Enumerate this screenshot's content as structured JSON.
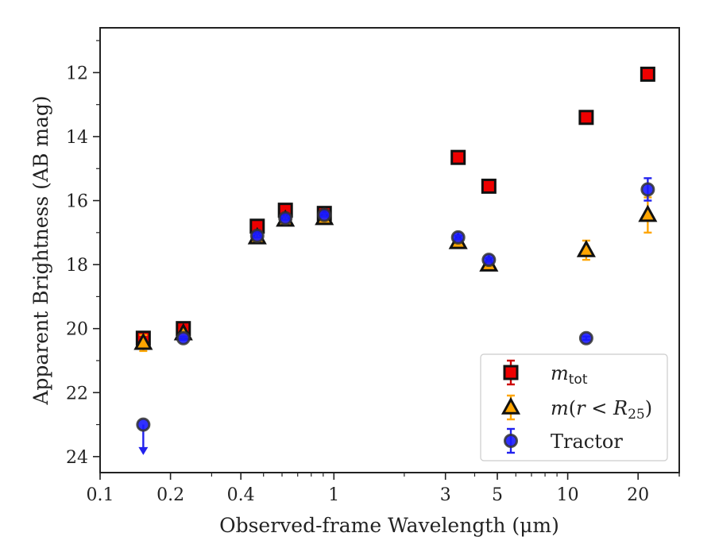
{
  "chart_data": {
    "type": "scatter",
    "xlabel": "Observed-frame Wavelength (μm)",
    "ylabel": "Apparent Brightness (AB mag)",
    "x_scale": "log",
    "xlim": [
      0.1,
      30
    ],
    "ylim": [
      24.5,
      10.6
    ],
    "y_inverted": true,
    "x_ticks": [
      0.1,
      0.2,
      0.4,
      1,
      3,
      5,
      10,
      20
    ],
    "x_tick_labels": [
      "0.1",
      "0.2",
      "0.4",
      "1",
      "3",
      "5",
      "10",
      "20"
    ],
    "y_ticks": [
      12,
      14,
      16,
      18,
      20,
      22,
      24
    ],
    "y_tick_labels": [
      "12",
      "14",
      "16",
      "18",
      "20",
      "22",
      "24"
    ],
    "grid": false,
    "legend_position": "lower-right",
    "series": [
      {
        "name": "m_tot",
        "marker": "square",
        "color": "#ee0000",
        "edge_color": "#111111",
        "error_color": "#cc0000",
        "points": [
          {
            "x": 0.153,
            "y": 20.3,
            "err": 0.1
          },
          {
            "x": 0.227,
            "y": 20.0,
            "err": 0.1
          },
          {
            "x": 0.47,
            "y": 16.8,
            "err": 0.1
          },
          {
            "x": 0.62,
            "y": 16.3,
            "err": 0.1
          },
          {
            "x": 0.91,
            "y": 16.4,
            "err": 0.1
          },
          {
            "x": 3.4,
            "y": 14.65,
            "err": 0.05
          },
          {
            "x": 4.6,
            "y": 15.55,
            "err": 0.05
          },
          {
            "x": 12.0,
            "y": 13.4,
            "err": 0.05
          },
          {
            "x": 22.0,
            "y": 12.05,
            "err": 0.05
          }
        ]
      },
      {
        "name": "m(r < R25)",
        "marker": "triangle",
        "color": "#ffa500",
        "edge_color": "#111111",
        "error_color": "#ffa500",
        "points": [
          {
            "x": 0.153,
            "y": 20.45,
            "err": 0.25
          },
          {
            "x": 0.227,
            "y": 20.15,
            "err": 0.1
          },
          {
            "x": 0.47,
            "y": 17.15,
            "err": 0.1
          },
          {
            "x": 0.62,
            "y": 16.6,
            "err": 0.1
          },
          {
            "x": 0.91,
            "y": 16.55,
            "err": 0.1
          },
          {
            "x": 3.4,
            "y": 17.3,
            "err": 0.1
          },
          {
            "x": 4.6,
            "y": 18.0,
            "err": 0.1
          },
          {
            "x": 12.0,
            "y": 17.55,
            "err": 0.3
          },
          {
            "x": 22.0,
            "y": 16.45,
            "err": 0.55
          }
        ]
      },
      {
        "name": "Tractor",
        "marker": "circle",
        "color": "#1a1aff",
        "edge_color": "#333333",
        "error_color": "#2222ee",
        "points": [
          {
            "x": 0.153,
            "y": 23.0,
            "upper_limit": true
          },
          {
            "x": 0.227,
            "y": 20.3,
            "err": 0.05
          },
          {
            "x": 0.47,
            "y": 17.1,
            "err": 0.05
          },
          {
            "x": 0.62,
            "y": 16.55,
            "err": 0.05
          },
          {
            "x": 0.91,
            "y": 16.45,
            "err": 0.05
          },
          {
            "x": 3.4,
            "y": 17.15,
            "err": 0.05
          },
          {
            "x": 4.6,
            "y": 17.85,
            "err": 0.05
          },
          {
            "x": 12.0,
            "y": 20.3,
            "err": 0.05
          },
          {
            "x": 22.0,
            "y": 15.65,
            "err": 0.35
          }
        ]
      }
    ]
  }
}
